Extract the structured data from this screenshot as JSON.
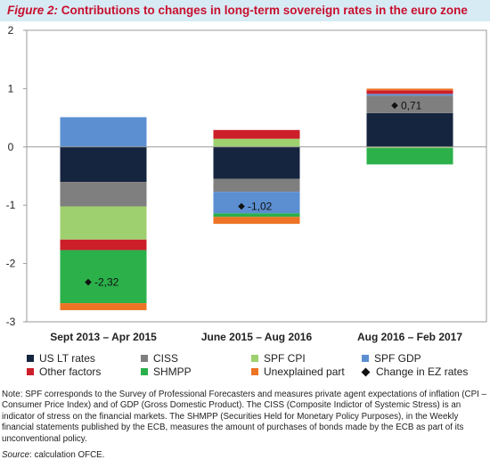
{
  "header": {
    "figure_label": "Figure 2:",
    "title": "Contributions to changes in long-term sovereign rates in the euro zone"
  },
  "colors": {
    "title_bar": "#d7ebf5",
    "title_text": "#c8102e"
  },
  "chart_data": {
    "type": "bar",
    "stacked": true,
    "categories": [
      "Sept 2013 – Apr 2015",
      "June 2015 – Aug 2016",
      "Aug 2016 – Feb 2017"
    ],
    "ylim": [
      -3,
      2
    ],
    "yticks": [
      "2",
      "1",
      "0",
      "-1",
      "-2",
      "-3"
    ],
    "series": [
      {
        "name": "US LT rates",
        "color": "#16253f",
        "values": [
          -0.6,
          -0.55,
          0.58
        ]
      },
      {
        "name": "CISS",
        "color": "#7f7f7f",
        "values": [
          -0.42,
          -0.22,
          0.3
        ]
      },
      {
        "name": "SPF CPI",
        "color": "#9fd06f",
        "values": [
          -0.57,
          0.14,
          -0.02
        ]
      },
      {
        "name": "SPF GDP",
        "color": "#5b8fd1",
        "values": [
          0.51,
          -0.37,
          0.03
        ]
      },
      {
        "name": "Other factors",
        "color": "#cc1f2a",
        "values": [
          -0.18,
          0.15,
          0.06
        ]
      },
      {
        "name": "SHMPP",
        "color": "#2bb04a",
        "values": [
          -0.91,
          -0.06,
          -0.28
        ]
      },
      {
        "name": "Unexplained part",
        "color": "#ec7424",
        "values": [
          -0.12,
          -0.12,
          0.03
        ]
      }
    ],
    "change_in_ez_rates": {
      "name": "Change in EZ rates",
      "values": [
        -2.32,
        -1.02,
        0.71
      ],
      "labels": [
        "-2,32",
        "-1,02",
        "0,71"
      ]
    },
    "legend_position": "bottom"
  },
  "note": "Note: SPF corresponds to the Survey of Professional Forecasters and measures private agent expectations of inflation (CPI – Consumer Price Index) and of GDP (Gross Domestic Product). The CISS (Composite Indictor of Systemic Stress) is an indicator of stress on the financial markets. The SHMPP (Securities Held for Monetary Policy Purposes), in the Weekly financial statements published by the ECB, measures the amount of purchases of bonds made by the ECB as part of its unconventional policy.",
  "source": {
    "label": "Source",
    "text": ": calculation OFCE."
  }
}
